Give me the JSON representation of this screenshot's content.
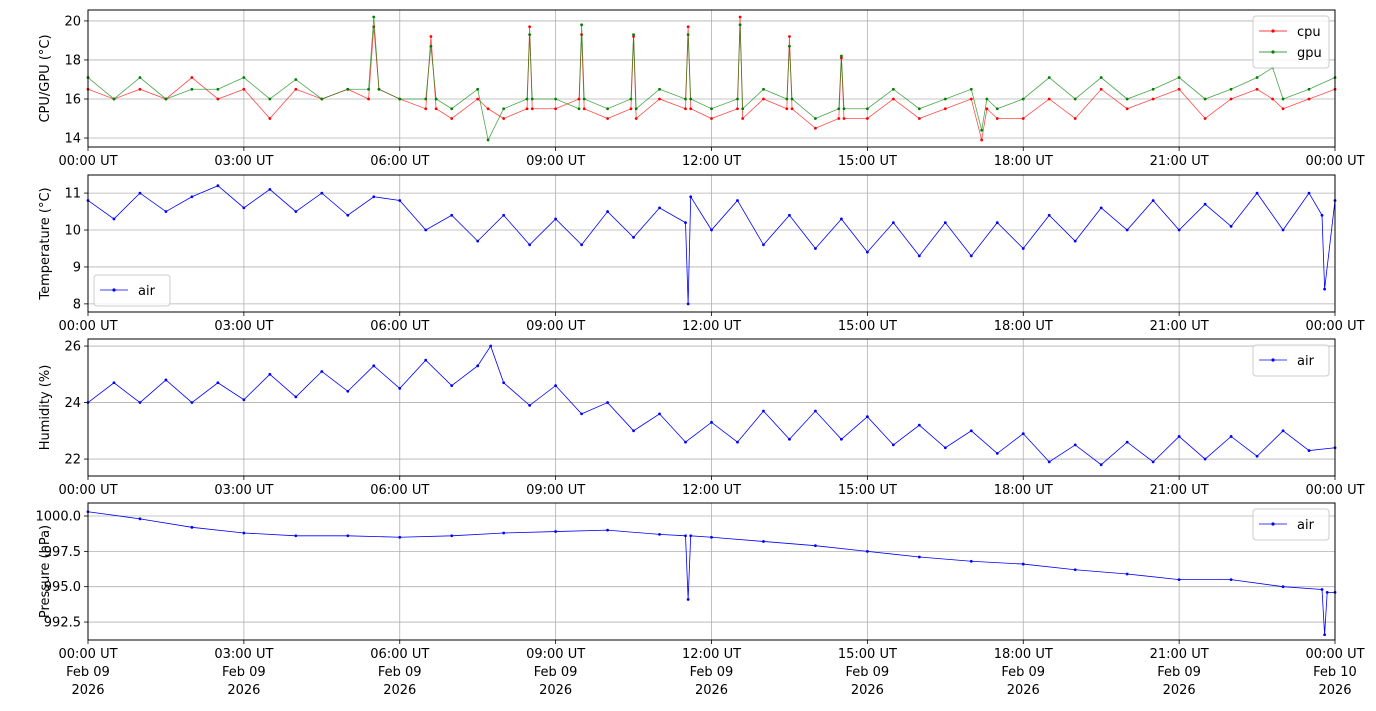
{
  "chart_data": [
    {
      "type": "line",
      "ylabel": "CPU/GPU (°C)",
      "ylim": [
        13.54,
        20.56
      ],
      "yticks": [
        14,
        16,
        18,
        20
      ],
      "ytick_labels": [
        "14",
        "16",
        "18",
        "20"
      ],
      "legend_placement": "top-right",
      "x_hours": [
        0,
        0.5,
        1,
        1.5,
        2,
        2.5,
        3,
        3.5,
        4,
        4.5,
        5,
        5.4,
        5.5,
        5.6,
        6,
        6.5,
        6.6,
        6.7,
        7,
        7.5,
        7.7,
        8,
        8.45,
        8.5,
        8.55,
        9,
        9.45,
        9.5,
        9.55,
        10,
        10.45,
        10.5,
        10.55,
        11,
        11.5,
        11.55,
        11.6,
        12,
        12.5,
        12.55,
        12.6,
        13,
        13.45,
        13.5,
        13.55,
        14,
        14.45,
        14.5,
        14.55,
        15,
        15.5,
        16,
        16.5,
        17,
        17.2,
        17.3,
        17.5,
        18,
        18.5,
        19,
        19.5,
        20,
        20.5,
        21,
        21.5,
        22,
        22.5,
        22.8,
        23,
        23.5,
        24
      ],
      "series": [
        {
          "name": "cpu",
          "color": "#ff0000",
          "values": [
            16.5,
            16,
            16.5,
            16,
            17.1,
            16,
            16.5,
            15,
            16.5,
            16,
            16.5,
            16,
            19.7,
            16.5,
            16,
            15.5,
            19.2,
            15.5,
            15,
            16,
            15.5,
            15,
            15.5,
            19.7,
            15.5,
            15.5,
            16,
            19.3,
            15.5,
            15,
            15.5,
            19.2,
            15,
            16,
            15.5,
            19.7,
            15.5,
            15,
            15.5,
            20.2,
            15,
            16,
            15.5,
            19.2,
            15.5,
            14.5,
            15,
            18.1,
            15,
            15,
            16,
            15,
            15.5,
            16,
            13.9,
            15.5,
            15,
            15,
            16,
            15,
            16.5,
            15.5,
            16,
            16.5,
            15,
            16,
            16.5,
            16,
            15.5,
            16,
            16.5
          ]
        },
        {
          "name": "gpu",
          "color": "#008000",
          "values": [
            17.1,
            16,
            17.1,
            16,
            16.5,
            16.5,
            17.1,
            16,
            17,
            16,
            16.5,
            16.5,
            20.2,
            16.5,
            16,
            16,
            18.7,
            16,
            15.5,
            16.5,
            13.9,
            15.5,
            16,
            19.3,
            16,
            16,
            15.5,
            19.8,
            16,
            15.5,
            16,
            19.3,
            15.5,
            16.5,
            16,
            19.3,
            16,
            15.5,
            16,
            19.8,
            15.5,
            16.5,
            16,
            18.7,
            16,
            15,
            15.5,
            18.2,
            15.5,
            15.5,
            16.5,
            15.5,
            16,
            16.5,
            14.4,
            16,
            15.5,
            16,
            17.1,
            16,
            17.1,
            16,
            16.5,
            17.1,
            16,
            16.5,
            17.1,
            17.6,
            16,
            16.5,
            17.1
          ]
        }
      ]
    },
    {
      "type": "line",
      "ylabel": "Temperature (°C)",
      "ylim": [
        7.78,
        11.49
      ],
      "yticks": [
        8,
        9,
        10,
        11
      ],
      "ytick_labels": [
        "8",
        "9",
        "10",
        "11"
      ],
      "legend_placement": "lower-left",
      "x_hours": [
        0,
        0.5,
        1,
        1.5,
        2,
        2.5,
        3,
        3.5,
        4,
        4.5,
        5,
        5.5,
        6,
        6.5,
        7,
        7.5,
        8,
        8.5,
        9,
        9.5,
        10,
        10.5,
        11,
        11.5,
        11.55,
        11.6,
        12,
        12.5,
        13,
        13.5,
        14,
        14.5,
        15,
        15.5,
        16,
        16.5,
        17,
        17.5,
        18,
        18.5,
        19,
        19.5,
        20,
        20.5,
        21,
        21.5,
        22,
        22.5,
        23,
        23.5,
        23.75,
        23.8,
        24
      ],
      "series": [
        {
          "name": "air",
          "color": "#0000ff",
          "values": [
            10.8,
            10.3,
            11.0,
            10.5,
            10.9,
            11.2,
            10.6,
            11.1,
            10.5,
            11.0,
            10.4,
            10.9,
            10.8,
            10.0,
            10.4,
            9.7,
            10.4,
            9.6,
            10.3,
            9.6,
            10.5,
            9.8,
            10.6,
            10.2,
            8.0,
            10.9,
            10.0,
            10.8,
            9.6,
            10.4,
            9.5,
            10.3,
            9.4,
            10.2,
            9.3,
            10.2,
            9.3,
            10.2,
            9.5,
            10.4,
            9.7,
            10.6,
            10.0,
            10.8,
            10.0,
            10.7,
            10.1,
            11.0,
            10.0,
            11.0,
            10.4,
            8.4,
            10.8
          ]
        }
      ]
    },
    {
      "type": "line",
      "ylabel": "Humidity (%)",
      "ylim": [
        21.4,
        26.25
      ],
      "yticks": [
        22,
        24,
        26
      ],
      "ytick_labels": [
        "22",
        "24",
        "26"
      ],
      "legend_placement": "top-right",
      "x_hours": [
        0,
        0.5,
        1,
        1.5,
        2,
        2.5,
        3,
        3.5,
        4,
        4.5,
        5,
        5.5,
        6,
        6.5,
        7,
        7.5,
        7.75,
        8,
        8.5,
        9,
        9.5,
        10,
        10.5,
        11,
        11.5,
        12,
        12.5,
        13,
        13.5,
        14,
        14.5,
        15,
        15.5,
        16,
        16.5,
        17,
        17.5,
        18,
        18.5,
        19,
        19.5,
        20,
        20.5,
        21,
        21.5,
        22,
        22.5,
        23,
        23.5,
        24
      ],
      "series": [
        {
          "name": "air",
          "color": "#0000ff",
          "values": [
            24.0,
            24.7,
            24.0,
            24.8,
            24.0,
            24.7,
            24.1,
            25.0,
            24.2,
            25.1,
            24.4,
            25.3,
            24.5,
            25.5,
            24.6,
            25.3,
            26.0,
            24.7,
            23.9,
            24.6,
            23.6,
            24.0,
            23.0,
            23.6,
            22.6,
            23.3,
            22.6,
            23.7,
            22.7,
            23.7,
            22.7,
            23.5,
            22.5,
            23.2,
            22.4,
            23.0,
            22.2,
            22.9,
            21.9,
            22.5,
            21.8,
            22.6,
            21.9,
            22.8,
            22.0,
            22.8,
            22.1,
            23.0,
            22.3,
            22.4
          ]
        }
      ]
    },
    {
      "type": "line",
      "ylabel": "Pressure (hPa)",
      "xlabel": "",
      "ylim": [
        991.23,
        1000.92
      ],
      "yticks": [
        992.5,
        995.0,
        997.5,
        1000.0
      ],
      "ytick_labels": [
        "992.5",
        "995.0",
        "997.5",
        "1000.0"
      ],
      "legend_placement": "top-right",
      "x_hours": [
        0,
        1,
        2,
        3,
        4,
        5,
        6,
        7,
        8,
        9,
        10,
        11,
        11.5,
        11.55,
        11.6,
        12,
        13,
        14,
        15,
        16,
        17,
        18,
        19,
        20,
        21,
        22,
        23,
        23.75,
        23.8,
        23.85,
        24
      ],
      "series": [
        {
          "name": "air",
          "color": "#0000ff",
          "values": [
            1000.3,
            999.8,
            999.2,
            998.8,
            998.6,
            998.6,
            998.5,
            998.6,
            998.8,
            998.9,
            999.0,
            998.7,
            998.6,
            994.1,
            998.6,
            998.5,
            998.2,
            997.9,
            997.5,
            997.1,
            996.8,
            996.6,
            996.2,
            995.9,
            995.5,
            995.5,
            995.0,
            994.8,
            991.6,
            994.6,
            994.6
          ]
        }
      ]
    }
  ],
  "x_axis": {
    "xlim_hours": [
      0,
      24
    ],
    "tick_hours": [
      0,
      3,
      6,
      9,
      12,
      15,
      18,
      21,
      24
    ],
    "tick_labels": [
      "00:00 UT",
      "03:00 UT",
      "06:00 UT",
      "09:00 UT",
      "12:00 UT",
      "15:00 UT",
      "18:00 UT",
      "21:00 UT",
      "00:00 UT"
    ],
    "bottom_dates": [
      "Feb 09",
      "Feb 09",
      "Feb 09",
      "Feb 09",
      "Feb 09",
      "Feb 09",
      "Feb 09",
      "Feb 09",
      "Feb 10"
    ],
    "bottom_years": [
      "2026",
      "2026",
      "2026",
      "2026",
      "2026",
      "2026",
      "2026",
      "2026",
      "2026"
    ]
  }
}
